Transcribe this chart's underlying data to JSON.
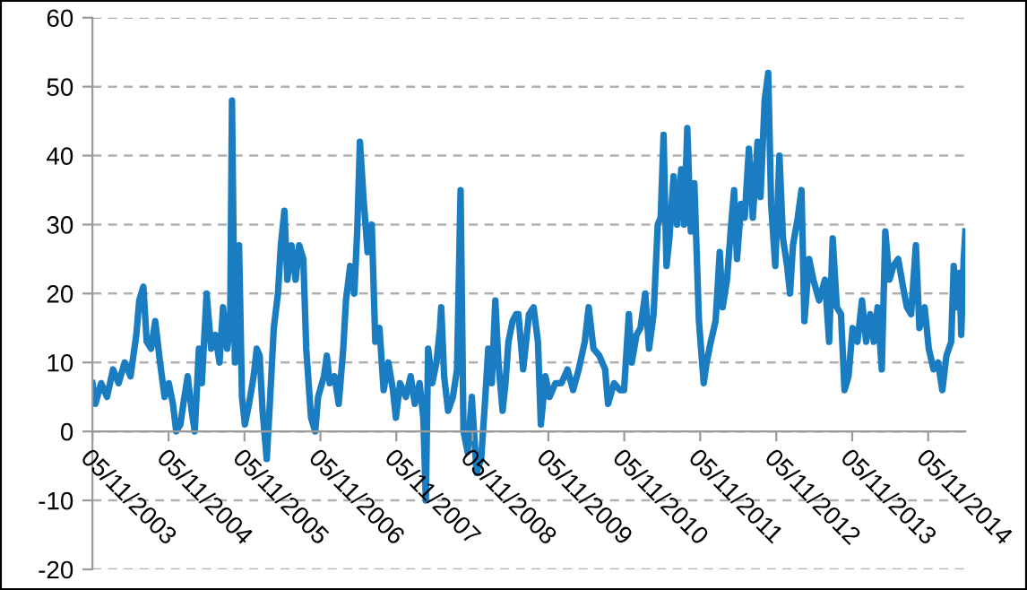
{
  "chart_data": {
    "type": "line",
    "x": [
      "2003-11-05",
      "2003-11-19",
      "2003-12-17",
      "2004-01-14",
      "2004-02-12",
      "2004-03-10",
      "2004-04-08",
      "2004-05-06",
      "2004-05-20",
      "2004-06-03",
      "2004-06-17",
      "2004-07-07",
      "2004-07-23",
      "2004-08-13",
      "2004-09-02",
      "2004-09-25",
      "2004-10-17",
      "2004-11-06",
      "2004-11-26",
      "2004-12-12",
      "2005-01-01",
      "2005-01-15",
      "2005-02-05",
      "2005-02-24",
      "2005-03-11",
      "2005-03-31",
      "2005-04-14",
      "2005-05-07",
      "2005-05-29",
      "2005-06-18",
      "2005-07-08",
      "2005-07-25",
      "2005-08-14",
      "2005-08-28",
      "2005-09-06",
      "2005-09-20",
      "2005-10-10",
      "2005-10-24",
      "2005-11-07",
      "2005-11-27",
      "2005-12-19",
      "2006-01-03",
      "2006-01-17",
      "2006-01-31",
      "2006-02-20",
      "2006-03-07",
      "2006-03-26",
      "2006-04-15",
      "2006-04-29",
      "2006-05-16",
      "2006-05-30",
      "2006-06-19",
      "2006-07-09",
      "2006-07-26",
      "2006-08-15",
      "2006-08-29",
      "2006-09-21",
      "2006-10-11",
      "2006-10-25",
      "2006-11-22",
      "2006-12-06",
      "2006-12-20",
      "2007-01-12",
      "2007-02-01",
      "2007-02-23",
      "2007-03-08",
      "2007-03-28",
      "2007-04-17",
      "2007-05-01",
      "2007-05-14",
      "2007-05-31",
      "2007-06-20",
      "2007-07-10",
      "2007-07-27",
      "2007-08-16",
      "2007-09-05",
      "2007-09-28",
      "2007-10-20",
      "2007-11-03",
      "2007-11-23",
      "2007-12-21",
      "2008-01-13",
      "2008-02-02",
      "2008-02-25",
      "2008-03-14",
      "2008-03-26",
      "2008-04-06",
      "2008-04-26",
      "2008-05-16",
      "2008-06-02",
      "2008-06-08",
      "2008-06-22",
      "2008-07-11",
      "2008-08-03",
      "2008-08-23",
      "2008-09-09",
      "2008-09-23",
      "2008-10-13",
      "2008-11-02",
      "2008-11-25",
      "2008-12-17",
      "2009-01-06",
      "2009-01-20",
      "2009-02-06",
      "2009-02-23",
      "2009-03-10",
      "2009-03-30",
      "2009-04-13",
      "2009-04-27",
      "2009-05-17",
      "2009-06-03",
      "2009-06-14",
      "2009-07-07",
      "2009-08-04",
      "2009-08-26",
      "2009-09-16",
      "2009-09-30",
      "2009-10-22",
      "2009-11-11",
      "2009-12-09",
      "2010-01-07",
      "2010-02-05",
      "2010-03-04",
      "2010-03-31",
      "2010-04-29",
      "2010-05-18",
      "2010-06-10",
      "2010-07-08",
      "2010-08-05",
      "2010-08-19",
      "2010-09-17",
      "2010-10-15",
      "2010-11-04",
      "2010-11-27",
      "2010-12-11",
      "2011-01-03",
      "2011-01-22",
      "2011-02-14",
      "2011-03-04",
      "2011-03-26",
      "2011-04-15",
      "2011-04-29",
      "2011-05-13",
      "2011-05-27",
      "2011-06-10",
      "2011-06-30",
      "2011-07-17",
      "2011-08-06",
      "2011-08-20",
      "2011-09-04",
      "2011-09-21",
      "2011-10-08",
      "2011-10-30",
      "2011-11-22",
      "2011-12-06",
      "2011-12-26",
      "2012-01-18",
      "2012-02-07",
      "2012-02-21",
      "2012-03-13",
      "2012-04-02",
      "2012-04-16",
      "2012-04-30",
      "2012-05-20",
      "2012-06-06",
      "2012-06-26",
      "2012-07-15",
      "2012-08-07",
      "2012-08-21",
      "2012-09-10",
      "2012-09-27",
      "2012-10-11",
      "2012-10-31",
      "2012-11-20",
      "2012-12-07",
      "2012-12-27",
      "2013-01-10",
      "2013-01-24",
      "2013-02-16",
      "2013-03-06",
      "2013-03-20",
      "2013-04-12",
      "2013-05-02",
      "2013-05-30",
      "2013-06-27",
      "2013-07-17",
      "2013-08-03",
      "2013-08-23",
      "2013-09-12",
      "2013-09-29",
      "2013-10-18",
      "2013-11-07",
      "2013-11-30",
      "2013-12-22",
      "2014-01-11",
      "2014-01-31",
      "2014-02-17",
      "2014-03-07",
      "2014-03-27",
      "2014-04-13",
      "2014-05-03",
      "2014-05-22",
      "2014-06-14",
      "2014-07-07",
      "2014-07-26",
      "2014-08-15",
      "2014-09-07",
      "2014-09-24",
      "2014-10-19",
      "2014-11-08",
      "2014-12-01",
      "2014-12-23",
      "2015-01-12",
      "2015-02-01",
      "2015-02-24",
      "2015-03-08",
      "2015-03-22",
      "2015-04-05",
      "2015-04-13",
      "2015-04-25",
      "2015-05-03"
    ],
    "series": [
      {
        "color": "#1b7dc1",
        "values": [
          7,
          4,
          7,
          5,
          9,
          7,
          10,
          8,
          11,
          14,
          19,
          21,
          13,
          12,
          16,
          10,
          5,
          7,
          4,
          0,
          1,
          4,
          8,
          3,
          0,
          12,
          7,
          20,
          12,
          14,
          10,
          18,
          12,
          15,
          48,
          10,
          27,
          5,
          1,
          4,
          8,
          12,
          11,
          3,
          -4,
          4,
          15,
          20,
          27,
          32,
          22,
          27,
          22,
          27,
          25,
          12,
          2,
          0,
          5,
          8,
          11,
          7,
          8,
          4,
          12,
          19,
          24,
          20,
          29,
          42,
          34,
          26,
          30,
          13,
          15,
          6,
          10,
          6,
          2,
          7,
          5,
          8,
          4,
          7,
          2,
          -10,
          12,
          7,
          10,
          15,
          18,
          8,
          3,
          5,
          9,
          35,
          0,
          -3,
          5,
          -6,
          -4,
          5,
          12,
          7,
          19,
          10,
          3,
          7,
          13,
          16,
          17,
          17,
          9,
          17,
          18,
          13,
          1,
          8,
          5,
          7,
          7,
          9,
          6,
          9,
          13,
          18,
          12,
          11,
          9,
          4,
          7,
          6,
          6,
          17,
          10,
          14,
          15,
          20,
          12,
          17,
          30,
          31,
          43,
          24,
          28,
          37,
          30,
          38,
          30,
          44,
          29,
          36,
          16,
          7,
          10,
          13,
          16,
          26,
          18,
          22,
          30,
          35,
          25,
          33,
          31,
          41,
          31,
          42,
          34,
          48,
          52,
          33,
          24,
          40,
          28,
          24,
          20,
          27,
          31,
          35,
          16,
          25,
          22,
          19,
          22,
          13,
          28,
          18,
          17,
          6,
          8,
          15,
          13,
          19,
          13,
          17,
          13,
          18,
          9,
          29,
          22,
          24,
          25,
          21,
          18,
          17,
          27,
          15,
          18,
          12,
          9,
          10,
          6,
          11,
          13,
          24,
          18,
          23,
          14,
          25,
          29
        ]
      }
    ],
    "xlim": [
      "2003-11-05",
      "2015-05-03"
    ],
    "xticks": [
      {
        "value": "2003-11-05",
        "label": "05/11/2003"
      },
      {
        "value": "2004-11-05",
        "label": "05/11/2004"
      },
      {
        "value": "2005-11-05",
        "label": "05/11/2005"
      },
      {
        "value": "2006-11-05",
        "label": "05/11/2006"
      },
      {
        "value": "2007-11-05",
        "label": "05/11/2007"
      },
      {
        "value": "2008-11-05",
        "label": "05/11/2008"
      },
      {
        "value": "2009-11-05",
        "label": "05/11/2009"
      },
      {
        "value": "2010-11-05",
        "label": "05/11/2010"
      },
      {
        "value": "2011-11-05",
        "label": "05/11/2011"
      },
      {
        "value": "2012-11-05",
        "label": "05/11/2012"
      },
      {
        "value": "2013-11-05",
        "label": "05/11/2013"
      },
      {
        "value": "2014-11-05",
        "label": "05/11/2014"
      }
    ],
    "ylim": [
      -20,
      60
    ],
    "yticks": [
      -20,
      -10,
      0,
      10,
      20,
      30,
      40,
      50,
      60
    ],
    "grid": "y",
    "legend": false,
    "marker": "none",
    "line_style": "solid"
  }
}
